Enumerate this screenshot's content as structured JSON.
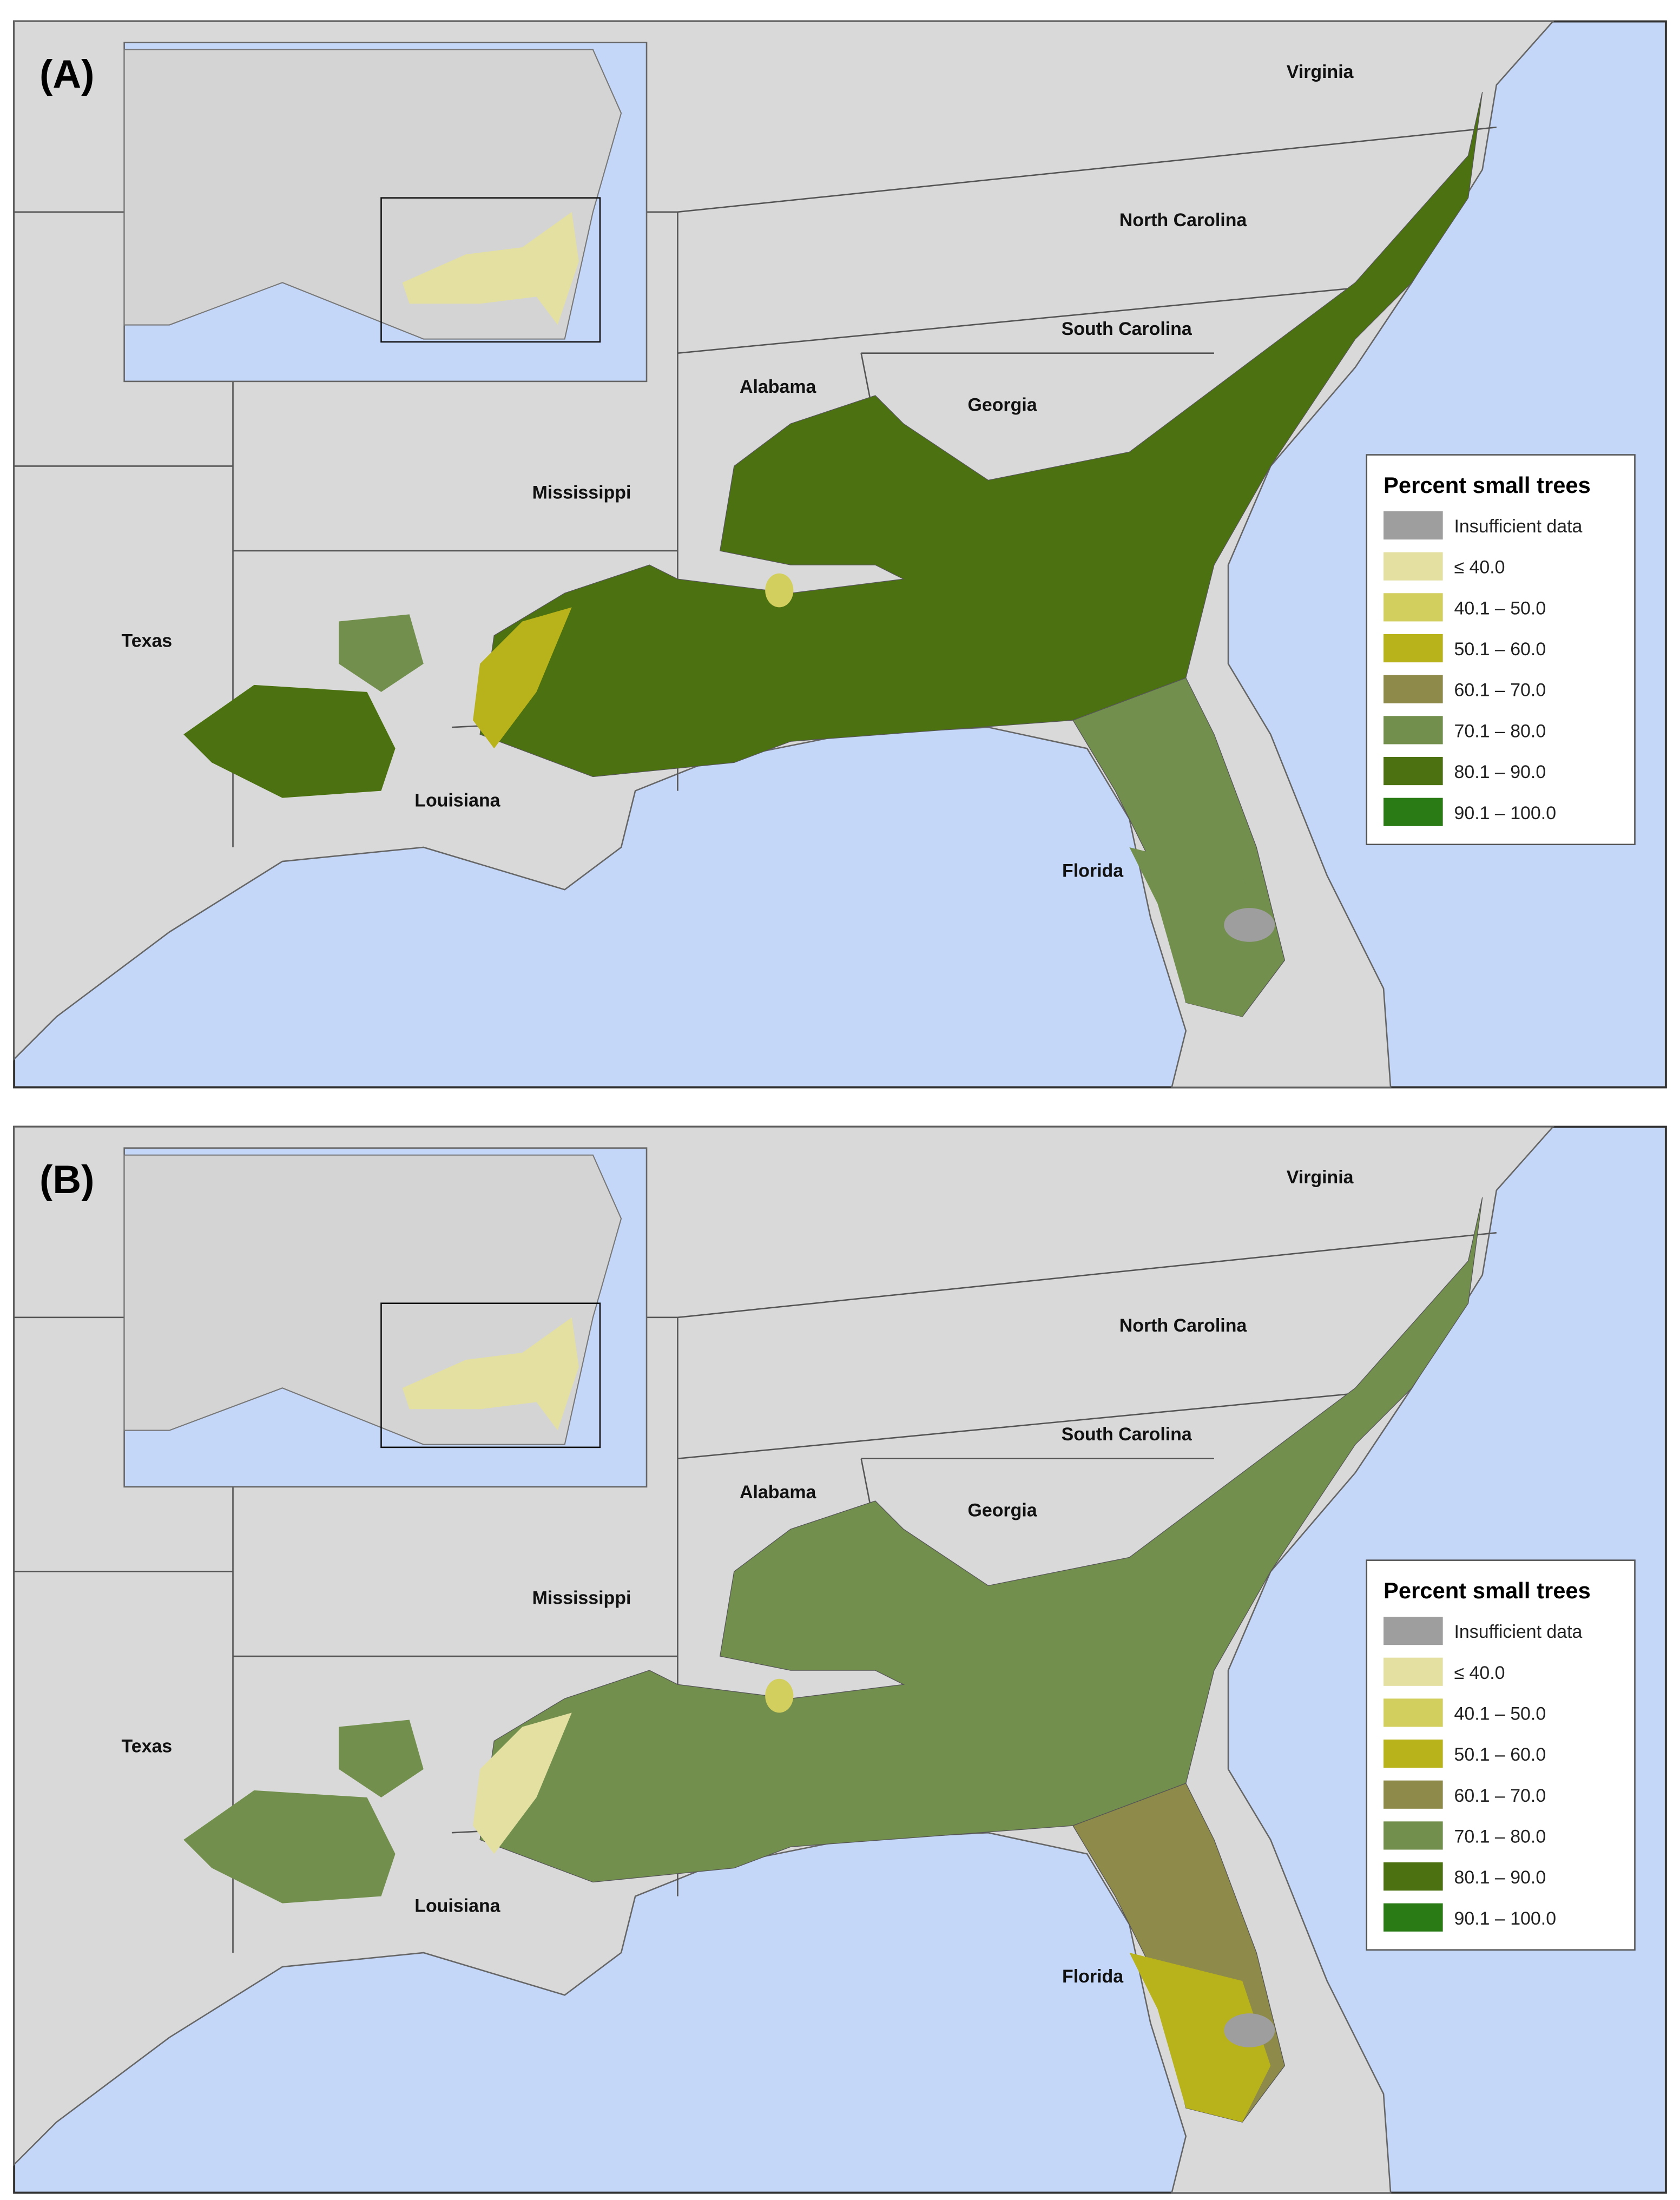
{
  "panels": [
    {
      "label": "(A)"
    },
    {
      "label": "(B)"
    }
  ],
  "state_labels": [
    "Virginia",
    "North Carolina",
    "South Carolina",
    "Alabama",
    "Georgia",
    "Mississippi",
    "Texas",
    "Louisiana",
    "Florida"
  ],
  "legend": {
    "title": "Percent small trees",
    "items": [
      {
        "label": "Insufficient data",
        "color": "#9e9e9e"
      },
      {
        "label": "≤ 40.0",
        "color": "#e3e0a2"
      },
      {
        "label": "40.1 – 50.0",
        "color": "#d2cf5f"
      },
      {
        "label": "50.1 – 60.0",
        "color": "#b8b31a"
      },
      {
        "label": "60.1 – 70.0",
        "color": "#8e8a4a"
      },
      {
        "label": "70.1 – 80.0",
        "color": "#728f4e"
      },
      {
        "label": "80.1 – 90.0",
        "color": "#4c7110"
      },
      {
        "label": "90.1 – 100.0",
        "color": "#2a7b16"
      }
    ]
  }
}
